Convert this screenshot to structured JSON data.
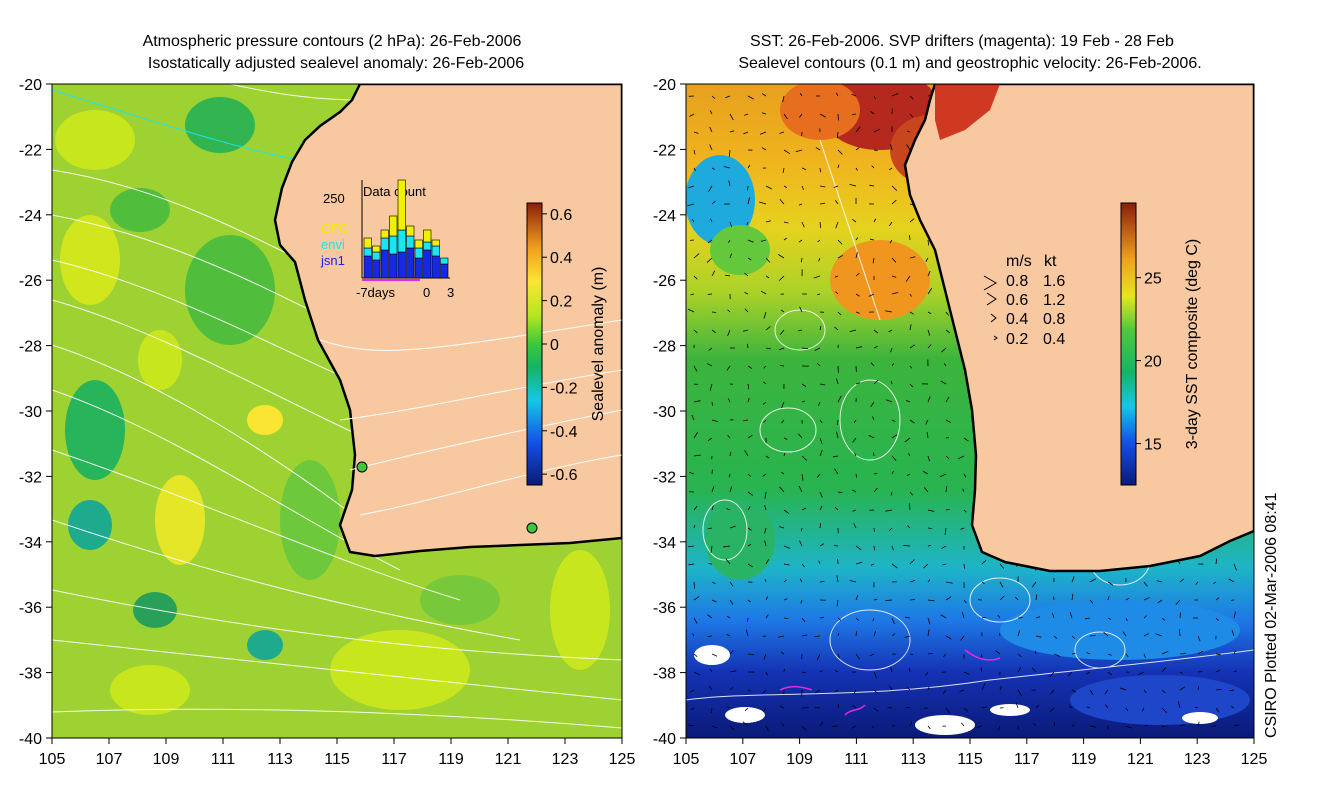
{
  "left_panel": {
    "title_line1": "Atmospheric pressure contours (2 hPa): 26-Feb-2006",
    "title_line2": "Isostatically adjusted sealevel anomaly: 26-Feb-2006",
    "colorbar": {
      "label": "Sealevel anomaly (m)",
      "ticks": [
        "0.6",
        "0.4",
        "0.2",
        "0",
        "-0.2",
        "-0.4",
        "-0.6"
      ],
      "range": [
        -0.65,
        0.65
      ]
    },
    "inset": {
      "title": "Data count",
      "ymax_label": "250",
      "x_labels": [
        "-7days",
        "0",
        "3"
      ],
      "satellites": [
        {
          "name": "GFO",
          "color": "#f0f000"
        },
        {
          "name": "envi",
          "color": "#19e6f0"
        },
        {
          "name": "jsn1",
          "color": "#1428e6"
        }
      ]
    }
  },
  "right_panel": {
    "title_line1": "SST: 26-Feb-2006. SVP drifters (magenta): 19 Feb - 28 Feb",
    "title_line2": "Sealevel contours (0.1 m) and geostrophic velocity: 26-Feb-2006.",
    "colorbar": {
      "label": "3-day SST composite (deg C)",
      "ticks": [
        "25",
        "20",
        "15"
      ],
      "range": [
        12.5,
        29.5
      ]
    },
    "velocity_legend": {
      "headers": [
        "m/s",
        "kt"
      ],
      "rows": [
        {
          "ms": "0.8",
          "kt": "1.6"
        },
        {
          "ms": "0.6",
          "kt": "1.2"
        },
        {
          "ms": "0.4",
          "kt": "0.8"
        },
        {
          "ms": "0.2",
          "kt": "0.4"
        }
      ]
    }
  },
  "axes": {
    "lat_labels": [
      "-20",
      "-22",
      "-24",
      "-26",
      "-28",
      "-30",
      "-32",
      "-34",
      "-36",
      "-38",
      "-40"
    ],
    "lon_labels": [
      "105",
      "107",
      "109",
      "111",
      "113",
      "115",
      "117",
      "119",
      "121",
      "123",
      "125"
    ],
    "lat_range": [
      -40,
      -20
    ],
    "lon_range": [
      105,
      125
    ]
  },
  "credit": "CSIRO Plotted 02-Mar-2006 08:41"
}
